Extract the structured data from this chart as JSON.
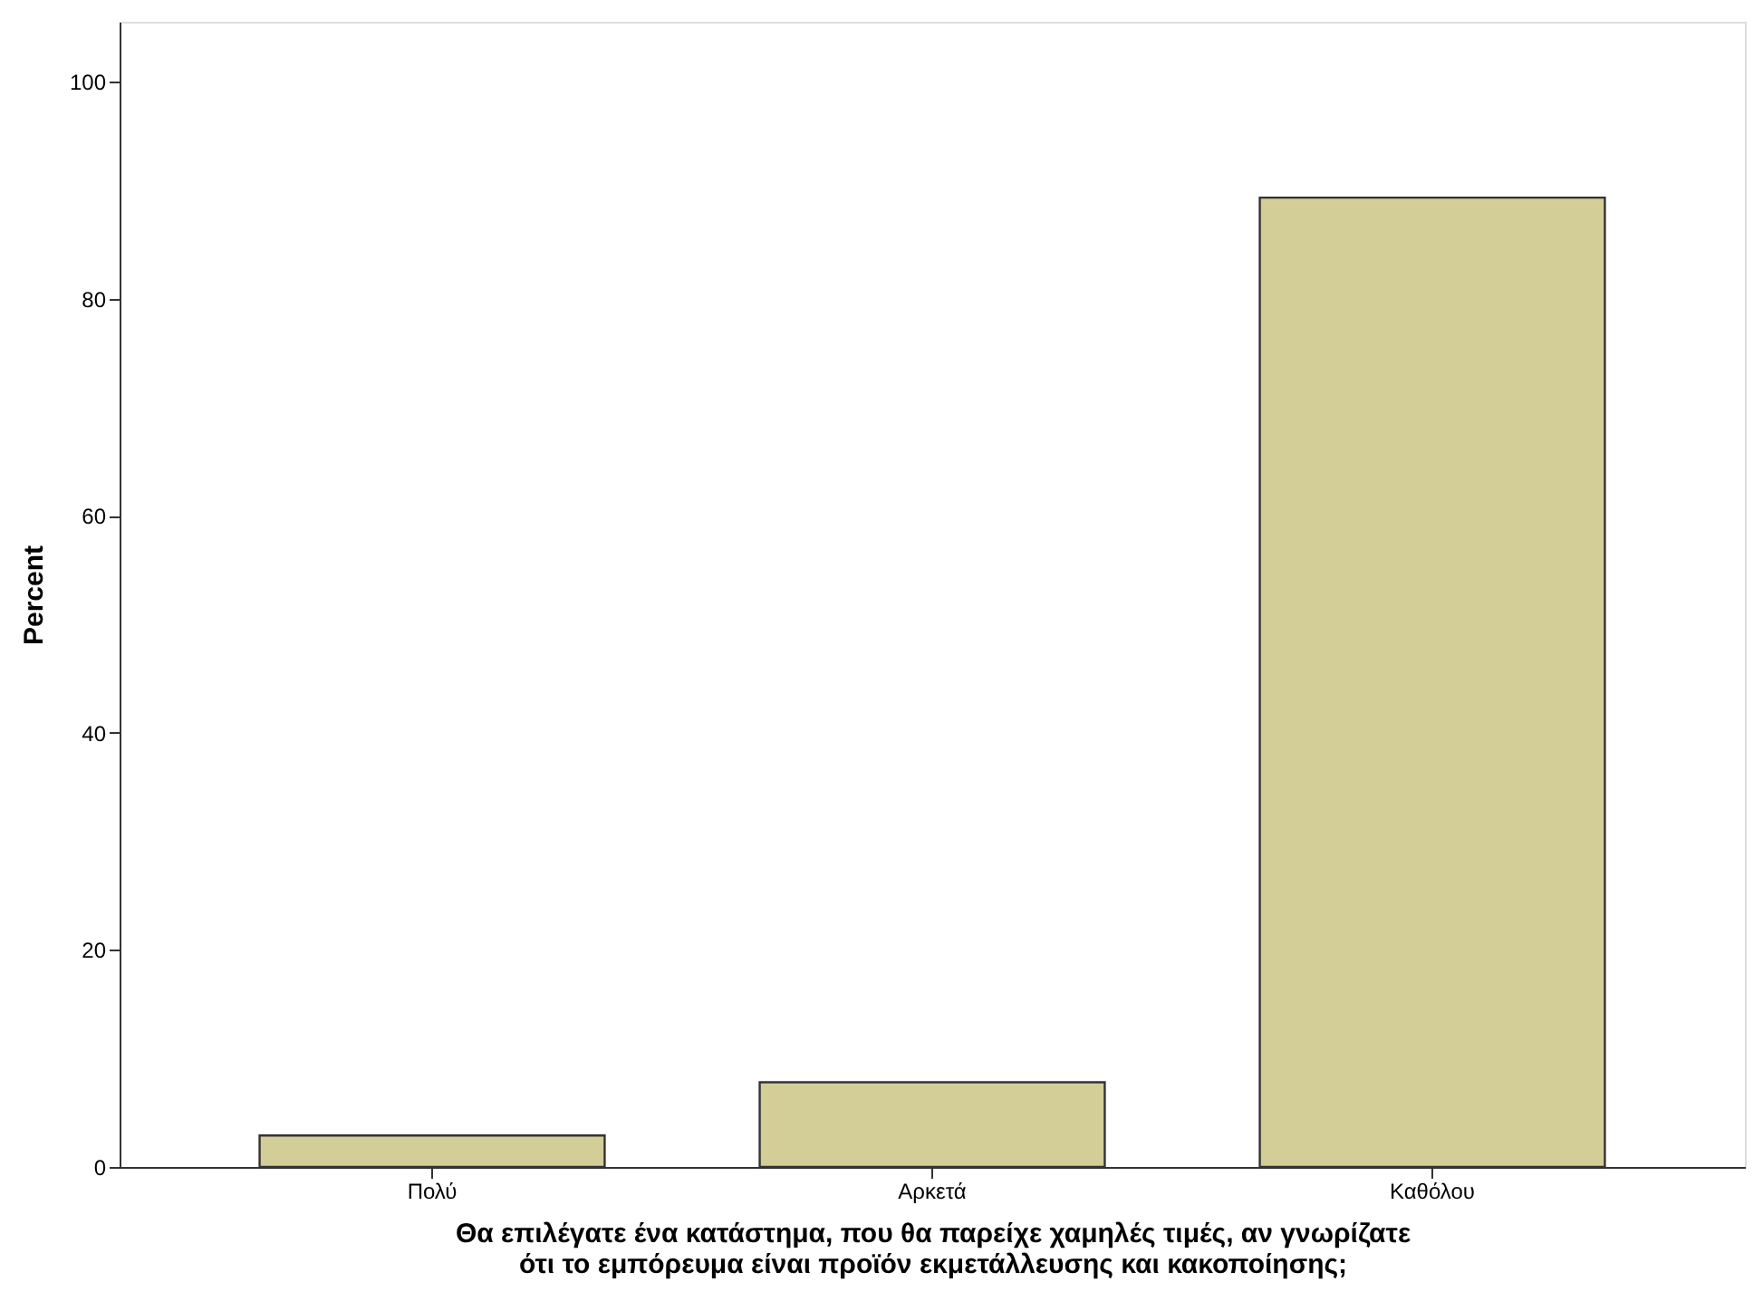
{
  "chart_data": {
    "type": "bar",
    "categories": [
      "Πολύ",
      "Αρκετά",
      "Καθόλου"
    ],
    "values": [
      2.9,
      7.8,
      89.3
    ],
    "color": "#d3ce97",
    "ylabel": "Percent",
    "xlabel": "Θα επιλέγατε ένα κατάστημα, που θα παρείχε χαμηλές τιμές, αν γνωρίζατε\nότι το εμπόρευμα είναι προϊόν εκμετάλλευσης και κακοποίησης;",
    "ylim": [
      0,
      105.5
    ],
    "yticks": [
      0,
      20,
      40,
      60,
      80,
      100
    ],
    "grid": false,
    "legend": false
  }
}
